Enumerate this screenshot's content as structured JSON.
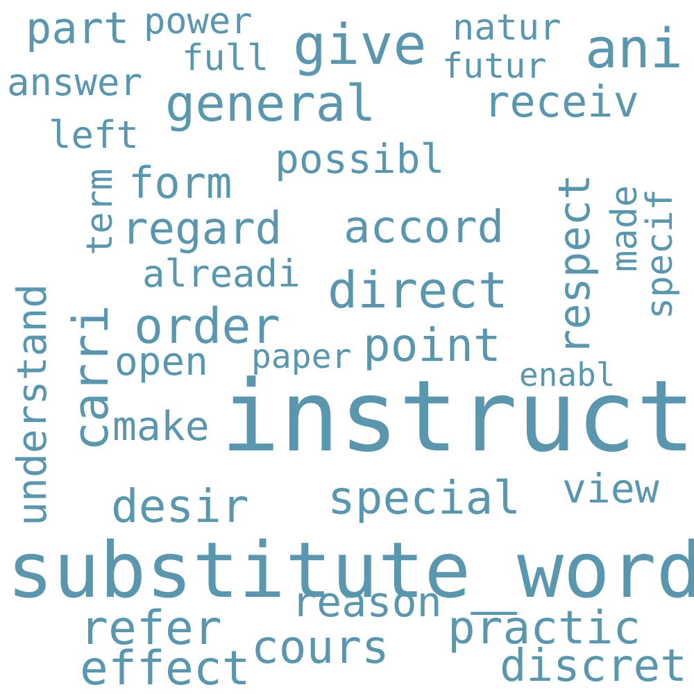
{
  "words": {
    "w01": "part",
    "w02": "power",
    "w03": "give",
    "w04": "natur",
    "w05": "ani",
    "w06": "full",
    "w07": "futur",
    "w08": "answer",
    "w09": "general",
    "w10": "receiv",
    "w11": "left",
    "w12": "possibl",
    "w13": "term",
    "w14": "form",
    "w15": "respect",
    "w16": "made",
    "w17": "specif",
    "w18": "regard",
    "w19": "accord",
    "w20": "understand",
    "w21": "alreadi",
    "w22": "direct",
    "w23": "carri",
    "w24": "order",
    "w25": "point",
    "w26": "paper",
    "w27": "open",
    "w28": "enabl",
    "w29": "instruct",
    "w30": "make",
    "w31": "view",
    "w32": "desir",
    "w33": "special",
    "w34": "substitute_word",
    "w35": "reason",
    "w36": "refer",
    "w37": "practic",
    "w38": "cours",
    "w39": "effect",
    "w40": "discret"
  },
  "colors": {
    "word": "#5a97ae",
    "background": "#ffffff"
  }
}
